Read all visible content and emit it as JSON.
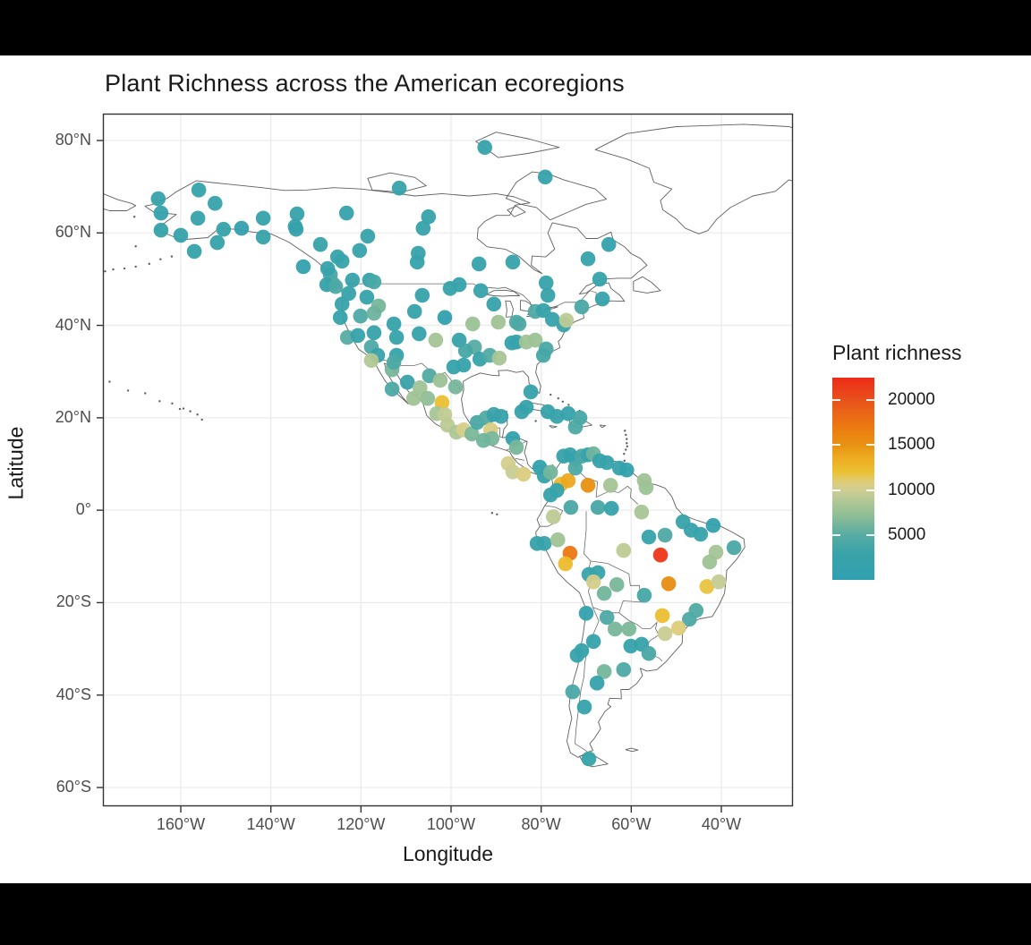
{
  "window": {
    "letterbox_color": "#000000",
    "background": "#ffffff"
  },
  "title": "Plant Richness across the American ecoregions",
  "axes": {
    "x": {
      "label": "Longitude",
      "ticks": [
        {
          "value": -160,
          "label": "160°W"
        },
        {
          "value": -140,
          "label": "140°W"
        },
        {
          "value": -120,
          "label": "120°W"
        },
        {
          "value": -100,
          "label": "100°W"
        },
        {
          "value": -80,
          "label": "80°W"
        },
        {
          "value": -60,
          "label": "60°W"
        },
        {
          "value": -40,
          "label": "40°W"
        }
      ]
    },
    "y": {
      "label": "Latitude",
      "ticks": [
        {
          "value": 80,
          "label": "80°N"
        },
        {
          "value": 60,
          "label": "60°N"
        },
        {
          "value": 40,
          "label": "40°N"
        },
        {
          "value": 20,
          "label": "20°N"
        },
        {
          "value": 0,
          "label": "0°"
        },
        {
          "value": -20,
          "label": "20°S"
        },
        {
          "value": -40,
          "label": "40°S"
        },
        {
          "value": -60,
          "label": "60°S"
        }
      ]
    }
  },
  "legend": {
    "title": "Plant richness",
    "domain": [
      0,
      22500
    ],
    "ticks": [
      {
        "value": 20000,
        "label": "20000"
      },
      {
        "value": 15000,
        "label": "15000"
      },
      {
        "value": 10000,
        "label": "10000"
      },
      {
        "value": 5000,
        "label": "5000"
      }
    ]
  },
  "style": {
    "point_radius": 8.3,
    "grid_color": "#ebebeb",
    "panel_border": "#333333",
    "coast_color": "#606060",
    "inner_border_color": "#6b6b6b",
    "tick_color": "#333333",
    "tick_label_color": "#4d4d4d",
    "text_color": "#1a1a1a"
  },
  "chart_data": {
    "type": "scatter",
    "title": "Plant Richness across the American ecoregions",
    "xlabel": "Longitude",
    "ylabel": "Latitude",
    "projection": "equirectangular",
    "lon_range": [
      -177.3,
      -24.1
    ],
    "lat_range": [
      -63.9,
      85.8
    ],
    "grid": true,
    "legend_position": "right",
    "color_scale": {
      "name": "Plant richness",
      "domain": [
        0,
        22500
      ],
      "stops": [
        [
          0,
          "#2F9FB0"
        ],
        [
          3000,
          "#3AA3A9"
        ],
        [
          5000,
          "#57ACA2"
        ],
        [
          7000,
          "#8BBD96"
        ],
        [
          9000,
          "#B5C994"
        ],
        [
          10000,
          "#CFCD92"
        ],
        [
          10800,
          "#DCCD7F"
        ],
        [
          12000,
          "#EBC133"
        ],
        [
          13500,
          "#EDAD22"
        ],
        [
          15000,
          "#E89213"
        ],
        [
          17000,
          "#EC7A10"
        ],
        [
          20000,
          "#E8511C"
        ],
        [
          22500,
          "#ED2B17"
        ]
      ]
    },
    "points": [
      [
        -165.0,
        67.4,
        2000
      ],
      [
        -156.0,
        69.3,
        2100
      ],
      [
        -164.4,
        64.3,
        1800
      ],
      [
        -152.4,
        66.4,
        2000
      ],
      [
        -156.2,
        63.2,
        2300
      ],
      [
        -164.4,
        60.6,
        2000
      ],
      [
        -160.0,
        59.5,
        2200
      ],
      [
        -157.0,
        56.0,
        2000
      ],
      [
        -151.9,
        57.9,
        2300
      ],
      [
        -150.5,
        60.8,
        2100
      ],
      [
        -146.5,
        61.0,
        1100
      ],
      [
        -141.7,
        63.2,
        2000
      ],
      [
        -141.7,
        59.1,
        2200
      ],
      [
        -134.2,
        64.1,
        2000
      ],
      [
        -134.4,
        60.8,
        2200
      ],
      [
        -123.2,
        64.3,
        1900
      ],
      [
        -129.0,
        57.5,
        2100
      ],
      [
        -124.2,
        53.9,
        2300
      ],
      [
        -126.8,
        51.0,
        3800
      ],
      [
        -126.2,
        49.0,
        4300
      ],
      [
        -118.5,
        59.3,
        2100
      ],
      [
        -118.1,
        49.8,
        2200
      ],
      [
        -92.5,
        78.5,
        2000
      ],
      [
        -79.1,
        72.1,
        1800
      ],
      [
        -111.5,
        69.7,
        2000
      ],
      [
        -105.0,
        63.5,
        2100
      ],
      [
        -106.2,
        61.0,
        2000
      ],
      [
        -107.3,
        55.6,
        2000
      ],
      [
        -134.6,
        61.4,
        2000
      ],
      [
        -120.3,
        56.2,
        2100
      ],
      [
        -132.8,
        52.7,
        1500
      ],
      [
        -127.4,
        52.3,
        2000
      ],
      [
        -125.2,
        54.8,
        2200
      ],
      [
        -107.5,
        53.7,
        2000
      ],
      [
        -93.8,
        53.3,
        1900
      ],
      [
        -86.3,
        53.7,
        2000
      ],
      [
        -127.6,
        48.8,
        2100
      ],
      [
        -125.6,
        48.4,
        4300
      ],
      [
        -121.9,
        49.8,
        2200
      ],
      [
        -117.1,
        49.4,
        4000
      ],
      [
        -122.7,
        46.9,
        2300
      ],
      [
        -118.7,
        46.1,
        2100
      ],
      [
        -100.2,
        48.0,
        2000
      ],
      [
        -98.2,
        48.8,
        2200
      ],
      [
        -93.4,
        47.5,
        2000
      ],
      [
        -116.1,
        44.2,
        6200
      ],
      [
        -124.2,
        44.6,
        2400
      ],
      [
        -106.4,
        46.5,
        2100
      ],
      [
        -90.5,
        44.6,
        2000
      ],
      [
        -124.6,
        41.7,
        2200
      ],
      [
        -120.1,
        42.0,
        4300
      ],
      [
        -117.1,
        42.6,
        5800
      ],
      [
        -108.1,
        43.0,
        2100
      ],
      [
        -101.4,
        41.7,
        800
      ],
      [
        -95.2,
        40.3,
        7800
      ],
      [
        -89.5,
        40.7,
        8000
      ],
      [
        -85.5,
        40.7,
        4300
      ],
      [
        -84.9,
        40.3,
        4400
      ],
      [
        -81.3,
        43.0,
        4500
      ],
      [
        -123.0,
        37.4,
        5000
      ],
      [
        -120.7,
        37.8,
        2300
      ],
      [
        -117.1,
        38.4,
        2200
      ],
      [
        -112.7,
        40.3,
        2000
      ],
      [
        -112.1,
        37.4,
        2300
      ],
      [
        -107.1,
        38.2,
        2100
      ],
      [
        -103.4,
        36.8,
        8200
      ],
      [
        -98.2,
        36.8,
        2000
      ],
      [
        -94.8,
        35.3,
        5000
      ],
      [
        -117.7,
        35.3,
        4300
      ],
      [
        -116.3,
        33.5,
        2400
      ],
      [
        -112.1,
        33.5,
        2200
      ],
      [
        -117.7,
        32.4,
        8800
      ],
      [
        -113.1,
        30.4,
        6200
      ],
      [
        -99.4,
        31.0,
        2200
      ],
      [
        -96.8,
        34.5,
        3900
      ],
      [
        -93.6,
        32.7,
        2100
      ],
      [
        -91.4,
        33.5,
        4600
      ],
      [
        -89.3,
        32.9,
        8400
      ],
      [
        -85.5,
        36.4,
        2200
      ],
      [
        -86.5,
        36.2,
        2200
      ],
      [
        -81.3,
        36.8,
        7800
      ],
      [
        -83.3,
        36.4,
        8000
      ],
      [
        -65.0,
        57.5,
        1300
      ],
      [
        -69.6,
        54.4,
        2000
      ],
      [
        -67.0,
        50.0,
        2100
      ],
      [
        -78.9,
        49.2,
        2000
      ],
      [
        -78.5,
        46.5,
        2200
      ],
      [
        -66.4,
        45.7,
        2000
      ],
      [
        -71.0,
        44.0,
        4200
      ],
      [
        -79.5,
        43.2,
        2100
      ],
      [
        -77.5,
        41.3,
        2300
      ],
      [
        -75.0,
        40.1,
        2600
      ],
      [
        -74.4,
        41.1,
        9200
      ],
      [
        -78.9,
        34.9,
        4200
      ],
      [
        -79.5,
        33.5,
        3900
      ],
      [
        -112.7,
        32.0,
        4300
      ],
      [
        -109.7,
        27.7,
        2400
      ],
      [
        -113.1,
        26.2,
        4400
      ],
      [
        -104.8,
        29.1,
        4600
      ],
      [
        -102.4,
        28.1,
        7800
      ],
      [
        -97.2,
        31.4,
        2300
      ],
      [
        -106.9,
        26.5,
        8000
      ],
      [
        -105.2,
        24.2,
        7200
      ],
      [
        -102.0,
        23.3,
        12200
      ],
      [
        -108.3,
        24.2,
        8000
      ],
      [
        -99.0,
        26.7,
        6200
      ],
      [
        -103.2,
        20.9,
        8300
      ],
      [
        -101.4,
        20.7,
        9500
      ],
      [
        -100.8,
        18.4,
        9200
      ],
      [
        -98.8,
        16.9,
        8600
      ],
      [
        -97.2,
        17.4,
        10400
      ],
      [
        -95.4,
        16.5,
        6400
      ],
      [
        -94.2,
        19.0,
        4100
      ],
      [
        -92.2,
        20.0,
        4600
      ],
      [
        -90.5,
        20.7,
        2600
      ],
      [
        -88.9,
        20.3,
        2400
      ],
      [
        -91.2,
        17.4,
        10600
      ],
      [
        -90.9,
        15.5,
        6300
      ],
      [
        -92.8,
        15.1,
        6000
      ],
      [
        -86.3,
        15.5,
        1400
      ],
      [
        -85.5,
        13.6,
        6200
      ],
      [
        -82.3,
        25.6,
        2200
      ],
      [
        -83.3,
        22.3,
        2100
      ],
      [
        -84.3,
        21.3,
        2000
      ],
      [
        -78.5,
        21.3,
        2200
      ],
      [
        -76.5,
        20.3,
        2100
      ],
      [
        -74.0,
        20.9,
        2000
      ],
      [
        -71.4,
        20.0,
        3900
      ],
      [
        -72.4,
        18.0,
        4300
      ],
      [
        -87.3,
        10.1,
        10300
      ],
      [
        -86.3,
        8.3,
        9800
      ],
      [
        -83.9,
        7.8,
        10700
      ],
      [
        -80.3,
        9.3,
        900
      ],
      [
        -79.3,
        7.4,
        2300
      ],
      [
        -77.9,
        8.2,
        6100
      ],
      [
        -75.0,
        11.7,
        2100
      ],
      [
        -73.6,
        12.0,
        2000
      ],
      [
        -72.4,
        11.1,
        1500
      ],
      [
        -71.0,
        11.7,
        4200
      ],
      [
        -69.6,
        12.0,
        2200
      ],
      [
        -68.4,
        12.2,
        5900
      ],
      [
        -67.0,
        10.7,
        2100
      ],
      [
        -65.4,
        10.3,
        2000
      ],
      [
        -62.6,
        9.1,
        2200
      ],
      [
        -61.0,
        8.7,
        1400
      ],
      [
        -75.6,
        5.6,
        12800
      ],
      [
        -74.0,
        6.4,
        13800
      ],
      [
        -69.6,
        5.4,
        15200
      ],
      [
        -72.4,
        9.1,
        4300
      ],
      [
        -76.5,
        4.3,
        2200
      ],
      [
        -77.9,
        3.3,
        2000
      ],
      [
        -73.4,
        0.6,
        4200
      ],
      [
        -67.4,
        0.6,
        3900
      ],
      [
        -64.4,
        0.4,
        2200
      ],
      [
        -64.6,
        5.4,
        8200
      ],
      [
        -57.1,
        6.4,
        8000
      ],
      [
        -56.7,
        4.9,
        7800
      ],
      [
        -57.7,
        -0.4,
        8300
      ],
      [
        -77.3,
        -1.4,
        9300
      ],
      [
        -80.9,
        -7.2,
        2200
      ],
      [
        -79.3,
        -7.2,
        2000
      ],
      [
        -76.3,
        -6.4,
        8000
      ],
      [
        -73.6,
        -9.3,
        17200
      ],
      [
        -74.6,
        -11.6,
        12400
      ],
      [
        -69.4,
        -13.9,
        2400
      ],
      [
        -67.4,
        -13.5,
        2200
      ],
      [
        -68.4,
        -15.5,
        10300
      ],
      [
        -63.2,
        -16.1,
        6300
      ],
      [
        -66.0,
        -18.0,
        6000
      ],
      [
        -57.1,
        -18.4,
        3900
      ],
      [
        -61.7,
        -8.7,
        9400
      ],
      [
        -56.1,
        -5.8,
        2200
      ],
      [
        -52.5,
        -5.4,
        4300
      ],
      [
        -53.5,
        -9.7,
        21800
      ],
      [
        -51.7,
        -15.9,
        15500
      ],
      [
        -48.5,
        -2.5,
        2100
      ],
      [
        -46.7,
        -4.3,
        2000
      ],
      [
        -44.6,
        -5.2,
        2200
      ],
      [
        -41.8,
        -3.3,
        1300
      ],
      [
        -41.2,
        -9.1,
        8200
      ],
      [
        -42.6,
        -11.2,
        7900
      ],
      [
        -37.2,
        -8.1,
        4200
      ],
      [
        -43.2,
        -16.5,
        11800
      ],
      [
        -40.6,
        -15.5,
        9600
      ],
      [
        -70.0,
        -22.3,
        1300
      ],
      [
        -65.4,
        -23.2,
        4300
      ],
      [
        -63.6,
        -25.7,
        6200
      ],
      [
        -60.5,
        -25.7,
        6400
      ],
      [
        -53.1,
        -22.8,
        12200
      ],
      [
        -47.1,
        -23.6,
        4300
      ],
      [
        -45.6,
        -21.7,
        4500
      ],
      [
        -52.5,
        -26.7,
        9800
      ],
      [
        -49.5,
        -25.5,
        10900
      ],
      [
        -68.4,
        -28.4,
        2200
      ],
      [
        -71.0,
        -30.4,
        2000
      ],
      [
        -72.0,
        -31.4,
        2100
      ],
      [
        -60.1,
        -29.4,
        2200
      ],
      [
        -57.7,
        -29.0,
        2000
      ],
      [
        -56.1,
        -31.0,
        4200
      ],
      [
        -66.0,
        -34.9,
        6100
      ],
      [
        -61.7,
        -34.5,
        4300
      ],
      [
        -67.6,
        -37.4,
        2100
      ],
      [
        -73.0,
        -39.3,
        4000
      ],
      [
        -70.4,
        -42.6,
        2000
      ],
      [
        -69.4,
        -53.8,
        2200
      ]
    ]
  }
}
